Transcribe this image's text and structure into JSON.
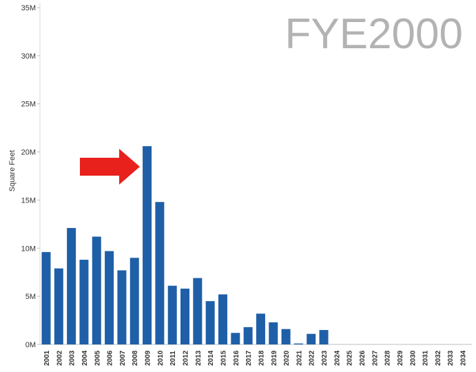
{
  "chart_data": {
    "type": "bar",
    "title": "FYE2000",
    "xlabel": "",
    "ylabel": "Square Feet",
    "ylim": [
      0,
      35000000
    ],
    "y_ticks": [
      {
        "value": 0,
        "label": "0M"
      },
      {
        "value": 5000000,
        "label": "5M"
      },
      {
        "value": 10000000,
        "label": "10M"
      },
      {
        "value": 15000000,
        "label": "15M"
      },
      {
        "value": 20000000,
        "label": "20M"
      },
      {
        "value": 25000000,
        "label": "25M"
      },
      {
        "value": 30000000,
        "label": "30M"
      },
      {
        "value": 35000000,
        "label": "35M"
      }
    ],
    "categories": [
      "2001",
      "2002",
      "2003",
      "2004",
      "2005",
      "2006",
      "2007",
      "2008",
      "2009",
      "2010",
      "2011",
      "2012",
      "2013",
      "2014",
      "2015",
      "2016",
      "2017",
      "2018",
      "2019",
      "2020",
      "2021",
      "2022",
      "2023",
      "2024",
      "2025",
      "2026",
      "2027",
      "2028",
      "2029",
      "2030",
      "2031",
      "2032",
      "2033",
      "2034"
    ],
    "values": [
      9600000,
      7900000,
      12100000,
      8800000,
      11200000,
      9700000,
      7700000,
      9000000,
      20600000,
      14800000,
      6100000,
      5800000,
      6900000,
      4500000,
      5200000,
      1200000,
      1800000,
      3200000,
      2300000,
      1600000,
      100000,
      1100000,
      1500000,
      0,
      0,
      0,
      0,
      0,
      0,
      0,
      0,
      0,
      0,
      0
    ],
    "bar_color": "#1f5fa8",
    "grid": false,
    "annotations": [
      {
        "type": "arrow",
        "color": "#e8211d",
        "points_to": "2009"
      }
    ]
  }
}
